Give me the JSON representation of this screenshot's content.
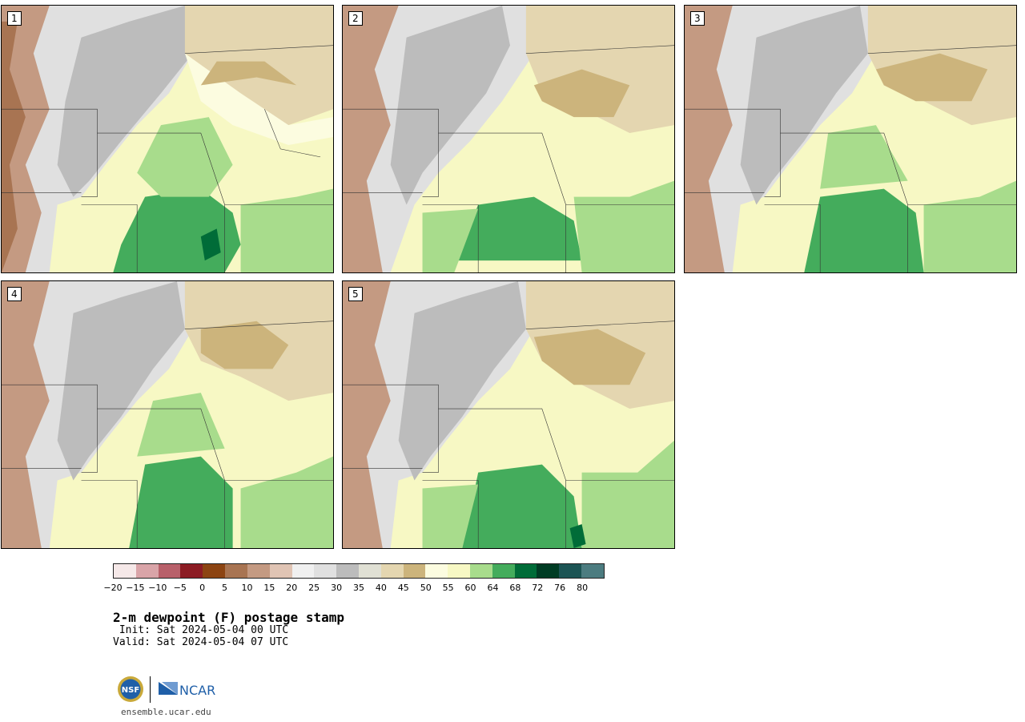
{
  "panels": [
    {
      "label": "1"
    },
    {
      "label": "2"
    },
    {
      "label": "3"
    },
    {
      "label": "4"
    },
    {
      "label": "5"
    }
  ],
  "colorbar": {
    "colors": [
      "#f5e8e8",
      "#d9a4a8",
      "#b8606a",
      "#8c1c24",
      "#8c4412",
      "#a87452",
      "#c49a82",
      "#e0c4b4",
      "#f0f0f0",
      "#e0e0e0",
      "#bcbcbc",
      "#e0e0d4",
      "#e4d6b0",
      "#ccb47c",
      "#fcfce0",
      "#f7f8c4",
      "#a8dc8c",
      "#44ac5c",
      "#006c38",
      "#003c24",
      "#1c5454",
      "#4c7c80"
    ],
    "ticks": [
      "−20",
      "−15",
      "−10",
      "−5",
      "0",
      "5",
      "10",
      "15",
      "20",
      "25",
      "30",
      "35",
      "40",
      "45",
      "50",
      "55",
      "60",
      "64",
      "68",
      "72",
      "76",
      "80"
    ]
  },
  "title": "2-m dewpoint (F) postage stamp",
  "init": " Init: Sat 2024-05-04 00 UTC",
  "valid": "Valid: Sat 2024-05-04 07 UTC",
  "logos": {
    "nsf": "nsf-logo",
    "ncar": "NCAR"
  },
  "site": "ensemble.ucar.edu"
}
